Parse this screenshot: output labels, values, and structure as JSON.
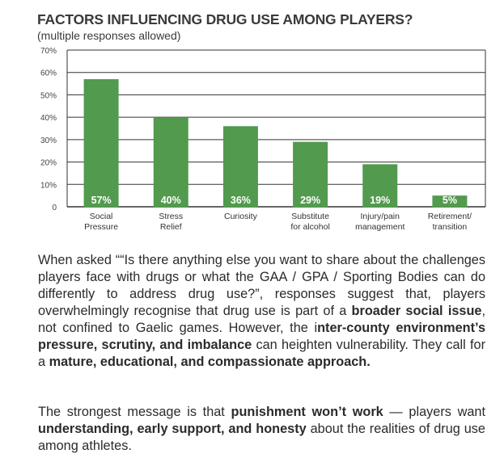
{
  "chart_data": {
    "type": "bar",
    "title": "FACTORS INFLUENCING DRUG USE AMONG PLAYERS?",
    "subtitle": "(multiple responses allowed)",
    "categories": [
      [
        "Social",
        "Pressure"
      ],
      [
        "Stress",
        "Relief"
      ],
      [
        "Curiosity"
      ],
      [
        "Substitute",
        "for alcohol"
      ],
      [
        "Injury/pain",
        "management"
      ],
      [
        "Retirement/",
        "transition"
      ]
    ],
    "values": [
      57,
      40,
      36,
      29,
      19,
      5
    ],
    "data_labels": [
      "57%",
      "40%",
      "36%",
      "29%",
      "19%",
      "5%"
    ],
    "yticks": [
      "0",
      "10%",
      "20%",
      "30%",
      "40%",
      "50%",
      "60%",
      "70%"
    ],
    "ylim": [
      0,
      70
    ],
    "grid": true,
    "bar_color": "#529a4d",
    "xlabel": "",
    "ylabel": ""
  },
  "paragraph1": [
    {
      "t": "When asked ““Is there anything else you want to share about the challenges players face with drugs or what the GAA / GPA / Sporting Bodies can do differently to address drug use?”, responses suggest that, players overwhelmingly recognise that drug use is part of a ",
      "b": false
    },
    {
      "t": "broader social issue",
      "b": true
    },
    {
      "t": ", not confined to Gaelic games. However, the i",
      "b": false
    },
    {
      "t": "nter-county environment’s pressure, scrutiny, and imbalance",
      "b": true
    },
    {
      "t": " can heighten vulnerability. They call for a ",
      "b": false
    },
    {
      "t": "mature, educational, and compassionate approach.",
      "b": true
    }
  ],
  "paragraph2": [
    {
      "t": "The strongest message is that ",
      "b": false
    },
    {
      "t": "punishment won’t work",
      "b": true
    },
    {
      "t": " — players want ",
      "b": false
    },
    {
      "t": "understanding, early support, and honesty",
      "b": true
    },
    {
      "t": " about the realities of drug use among athletes.",
      "b": false
    }
  ]
}
